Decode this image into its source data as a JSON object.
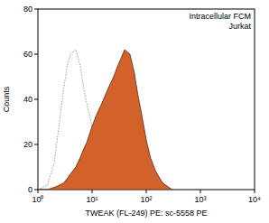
{
  "chart_data": {
    "type": "histogram",
    "annotations": [
      "Intracellular FCM",
      "Jurkat"
    ],
    "x_label": "TWEAK (FL-249) PE: sc-5558 PE",
    "y_label": "Counts",
    "log": "x",
    "x": [
      1,
      1.5,
      2,
      2.5,
      3,
      3.5,
      4,
      5,
      6,
      7,
      8,
      10,
      12,
      15,
      20,
      25,
      30,
      40,
      50,
      60,
      70,
      80,
      100,
      120,
      150,
      200,
      300
    ],
    "series": [
      {
        "type": "line",
        "line_style": "dotted",
        "color": "#9a9a9a",
        "values": [
          0,
          2,
          12,
          30,
          45,
          55,
          60,
          62,
          55,
          45,
          38,
          28,
          20,
          14,
          8,
          6,
          4,
          3,
          2,
          1,
          1,
          0,
          0,
          0,
          0,
          0,
          0
        ]
      },
      {
        "type": "area",
        "color": "#d2622a",
        "values": [
          0,
          0,
          1,
          2,
          3,
          5,
          7,
          10,
          14,
          18,
          21,
          28,
          33,
          38,
          45,
          50,
          55,
          62,
          60,
          52,
          42,
          35,
          22,
          14,
          8,
          3,
          0
        ]
      }
    ],
    "xlim": [
      1,
      10000
    ],
    "xticks": [
      {
        "value": 1,
        "label": "10⁰"
      },
      {
        "value": 10,
        "label": "10¹"
      },
      {
        "value": 100,
        "label": "10²"
      },
      {
        "value": 1000,
        "label": "10³"
      },
      {
        "value": 10000,
        "label": "10⁴"
      }
    ],
    "ylim": [
      0,
      80
    ],
    "yticks": [
      0,
      20,
      40,
      60,
      80
    ]
  }
}
